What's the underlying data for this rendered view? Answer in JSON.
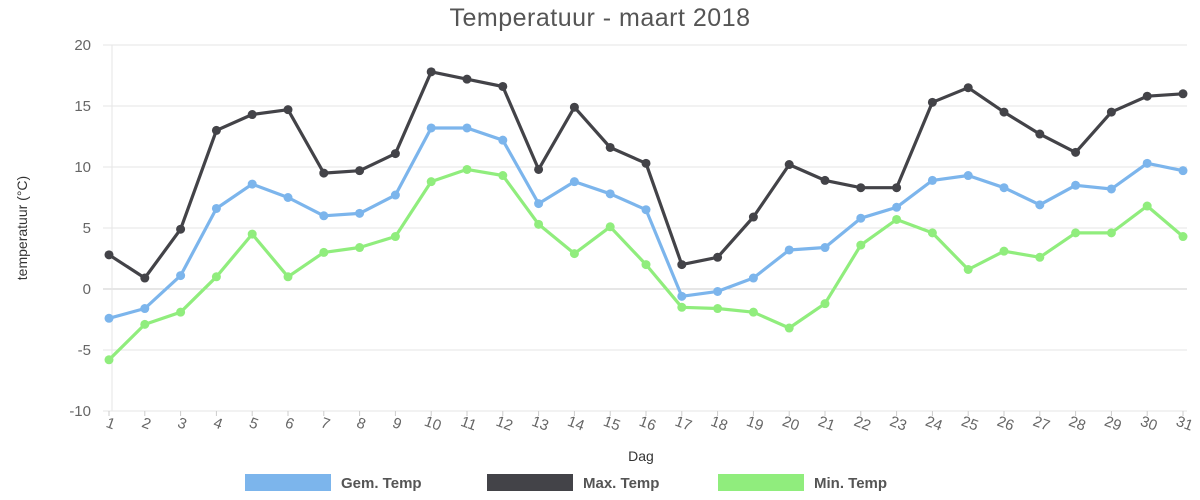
{
  "chart_data": {
    "type": "line",
    "title": "Temperatuur - maart 2018",
    "xlabel": "Dag",
    "ylabel": "temperatuur (°C)",
    "ylim": [
      -10,
      20
    ],
    "yticks": [
      -10,
      -5,
      0,
      5,
      10,
      15,
      20
    ],
    "categories": [
      "1",
      "2",
      "3",
      "4",
      "5",
      "6",
      "7",
      "8",
      "9",
      "10",
      "11",
      "12",
      "13",
      "14",
      "15",
      "16",
      "17",
      "18",
      "19",
      "20",
      "21",
      "22",
      "23",
      "24",
      "25",
      "26",
      "27",
      "28",
      "29",
      "30",
      "31"
    ],
    "legend_position": "bottom",
    "grid": true,
    "series": [
      {
        "name": "Gem. Temp",
        "color": "#7cb5ec",
        "values": [
          -2.4,
          -1.6,
          1.1,
          6.6,
          8.6,
          7.5,
          6.0,
          6.2,
          7.7,
          13.2,
          13.2,
          12.2,
          7.0,
          8.8,
          7.8,
          6.5,
          -0.6,
          -0.2,
          0.9,
          3.2,
          3.4,
          5.8,
          6.7,
          8.9,
          9.3,
          8.3,
          6.9,
          8.5,
          8.2,
          10.3,
          9.7
        ]
      },
      {
        "name": "Max. Temp",
        "color": "#434348",
        "values": [
          2.8,
          0.9,
          4.9,
          13.0,
          14.3,
          14.7,
          9.5,
          9.7,
          11.1,
          17.8,
          17.2,
          16.6,
          9.8,
          14.9,
          11.6,
          10.3,
          2.0,
          2.6,
          5.9,
          10.2,
          8.9,
          8.3,
          8.3,
          15.3,
          16.5,
          14.5,
          12.7,
          11.2,
          14.5,
          15.8,
          16.0
        ]
      },
      {
        "name": "Min. Temp",
        "color": "#90ed7d",
        "values": [
          -5.8,
          -2.9,
          -1.9,
          1.0,
          4.5,
          1.0,
          3.0,
          3.4,
          4.3,
          8.8,
          9.8,
          9.3,
          5.3,
          2.9,
          5.1,
          2.0,
          -1.5,
          -1.6,
          -1.9,
          -3.2,
          -1.2,
          3.6,
          5.7,
          4.6,
          1.6,
          3.1,
          2.6,
          4.6,
          4.6,
          6.8,
          4.3
        ]
      }
    ]
  }
}
